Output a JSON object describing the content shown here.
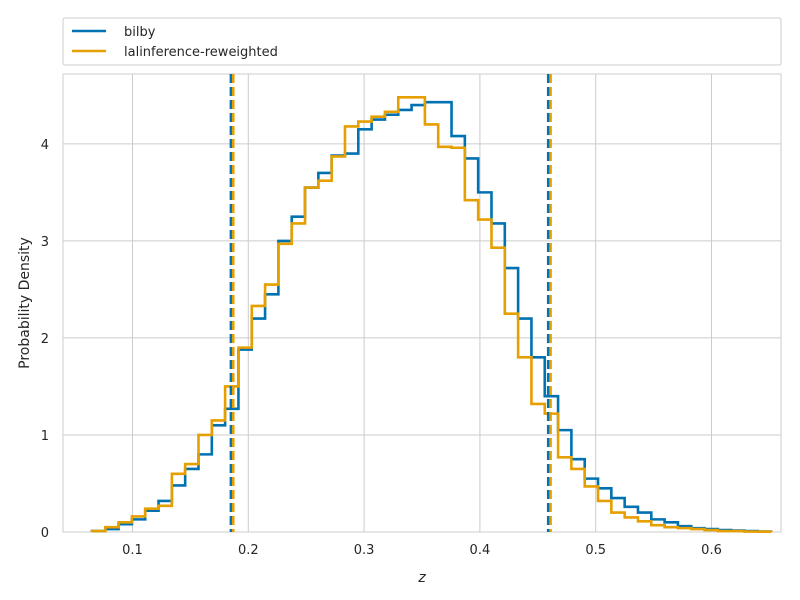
{
  "chart_data": {
    "type": "line",
    "xlabel": "z",
    "ylabel": "Probability Density",
    "xlim": [
      0.04,
      0.66
    ],
    "ylim": [
      0,
      4.72
    ],
    "xticks": [
      "0.1",
      "0.2",
      "0.3",
      "0.4",
      "0.5",
      "0.6"
    ],
    "yticks": [
      "0",
      "1",
      "2",
      "3",
      "4"
    ],
    "grid": true,
    "legend_position": "top (outside plot, spanning width)",
    "bin_edges": [
      0.065,
      0.0765,
      0.088,
      0.0995,
      0.111,
      0.1225,
      0.134,
      0.1455,
      0.157,
      0.1685,
      0.18,
      0.1915,
      0.203,
      0.2145,
      0.226,
      0.2375,
      0.249,
      0.2605,
      0.272,
      0.2835,
      0.295,
      0.3065,
      0.318,
      0.3295,
      0.341,
      0.3525,
      0.364,
      0.3755,
      0.387,
      0.3985,
      0.41,
      0.4215,
      0.433,
      0.4445,
      0.456,
      0.4675,
      0.479,
      0.4905,
      0.502,
      0.5135,
      0.525,
      0.5365,
      0.548,
      0.5595,
      0.571,
      0.5825,
      0.594,
      0.6055,
      0.617,
      0.6285,
      0.64,
      0.6515
    ],
    "series": [
      {
        "name": "bilby",
        "color": "#0072b2",
        "values": [
          0.01,
          0.03,
          0.08,
          0.13,
          0.22,
          0.32,
          0.48,
          0.65,
          0.8,
          1.1,
          1.27,
          1.88,
          2.2,
          2.45,
          3.0,
          3.25,
          3.55,
          3.7,
          3.88,
          3.9,
          4.15,
          4.25,
          4.3,
          4.35,
          4.4,
          4.43,
          4.43,
          4.08,
          3.85,
          3.5,
          3.18,
          2.72,
          2.2,
          1.8,
          1.4,
          1.05,
          0.75,
          0.55,
          0.45,
          0.35,
          0.26,
          0.2,
          0.13,
          0.1,
          0.06,
          0.04,
          0.03,
          0.02,
          0.015,
          0.01,
          0.005
        ],
        "interval_90": [
          0.185,
          0.459
        ]
      },
      {
        "name": "lalinference-reweighted",
        "color": "#e69f00",
        "values": [
          0.01,
          0.05,
          0.1,
          0.16,
          0.24,
          0.27,
          0.6,
          0.7,
          1.0,
          1.15,
          1.5,
          1.9,
          2.33,
          2.55,
          2.97,
          3.18,
          3.55,
          3.62,
          3.87,
          4.18,
          4.23,
          4.28,
          4.33,
          4.48,
          4.48,
          4.2,
          3.97,
          3.96,
          3.42,
          3.22,
          2.93,
          2.25,
          1.8,
          1.32,
          1.22,
          0.77,
          0.65,
          0.47,
          0.32,
          0.2,
          0.15,
          0.11,
          0.07,
          0.05,
          0.04,
          0.03,
          0.02,
          0.01,
          0.01,
          0.005,
          0.003
        ],
        "interval_90": [
          0.187,
          0.461
        ]
      }
    ]
  }
}
